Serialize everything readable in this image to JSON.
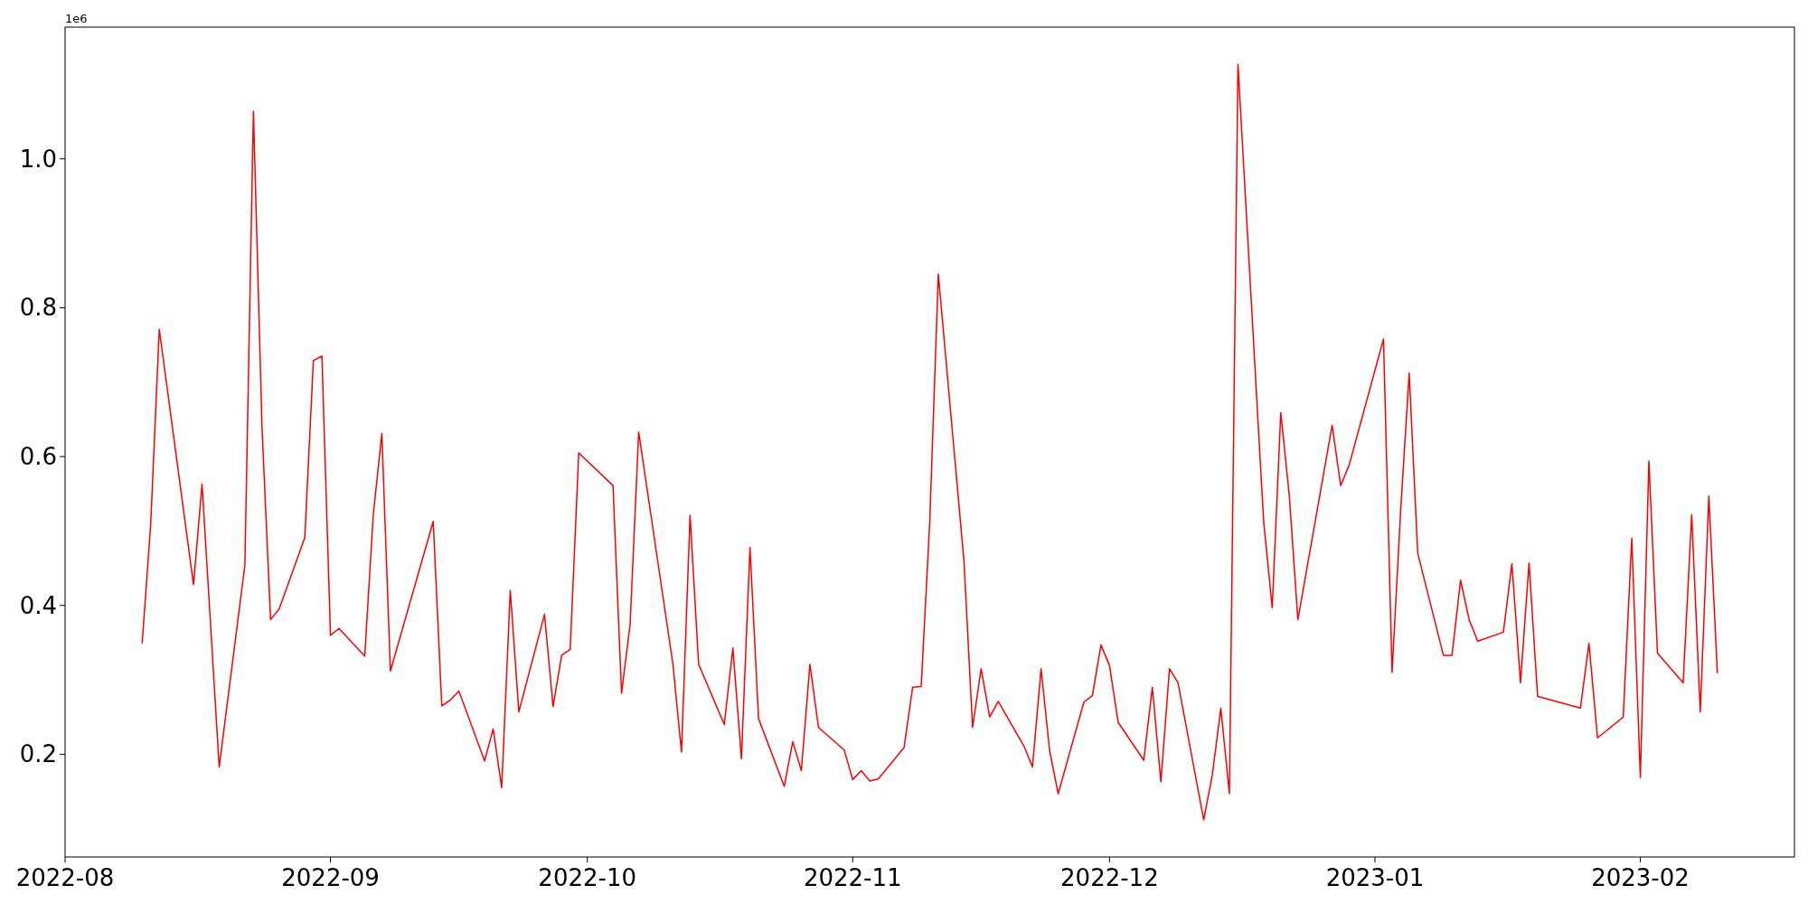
{
  "chart_data": {
    "type": "line",
    "annotations": [
      "1e6"
    ],
    "x": [
      "2022-08-10",
      "2022-08-11",
      "2022-08-12",
      "2022-08-16",
      "2022-08-17",
      "2022-08-19",
      "2022-08-22",
      "2022-08-23",
      "2022-08-24",
      "2022-08-25",
      "2022-08-26",
      "2022-08-29",
      "2022-08-30",
      "2022-08-31",
      "2022-09-01",
      "2022-09-02",
      "2022-09-05",
      "2022-09-06",
      "2022-09-07",
      "2022-09-08",
      "2022-09-13",
      "2022-09-14",
      "2022-09-15",
      "2022-09-16",
      "2022-09-19",
      "2022-09-20",
      "2022-09-21",
      "2022-09-22",
      "2022-09-23",
      "2022-09-26",
      "2022-09-27",
      "2022-09-28",
      "2022-09-29",
      "2022-09-30",
      "2022-10-04",
      "2022-10-05",
      "2022-10-06",
      "2022-10-07",
      "2022-10-11",
      "2022-10-12",
      "2022-10-13",
      "2022-10-14",
      "2022-10-17",
      "2022-10-18",
      "2022-10-19",
      "2022-10-20",
      "2022-10-21",
      "2022-10-24",
      "2022-10-25",
      "2022-10-26",
      "2022-10-27",
      "2022-10-28",
      "2022-10-31",
      "2022-11-01",
      "2022-11-02",
      "2022-11-03",
      "2022-11-04",
      "2022-11-07",
      "2022-11-08",
      "2022-11-09",
      "2022-11-10",
      "2022-11-11",
      "2022-11-14",
      "2022-11-15",
      "2022-11-16",
      "2022-11-17",
      "2022-11-18",
      "2022-11-21",
      "2022-11-22",
      "2022-11-23",
      "2022-11-24",
      "2022-11-25",
      "2022-11-28",
      "2022-11-29",
      "2022-11-30",
      "2022-12-01",
      "2022-12-02",
      "2022-12-05",
      "2022-12-06",
      "2022-12-07",
      "2022-12-08",
      "2022-12-09",
      "2022-12-12",
      "2022-12-13",
      "2022-12-14",
      "2022-12-15",
      "2022-12-16",
      "2022-12-19",
      "2022-12-20",
      "2022-12-21",
      "2022-12-22",
      "2022-12-23",
      "2022-12-27",
      "2022-12-28",
      "2022-12-29",
      "2023-01-02",
      "2023-01-03",
      "2023-01-04",
      "2023-01-05",
      "2023-01-06",
      "2023-01-09",
      "2023-01-10",
      "2023-01-11",
      "2023-01-12",
      "2023-01-13",
      "2023-01-16",
      "2023-01-17",
      "2023-01-18",
      "2023-01-19",
      "2023-01-20",
      "2023-01-25",
      "2023-01-26",
      "2023-01-27",
      "2023-01-30",
      "2023-01-31",
      "2023-02-01",
      "2023-02-02",
      "2023-02-03",
      "2023-02-06",
      "2023-02-07",
      "2023-02-08",
      "2023-02-09",
      "2023-02-10"
    ],
    "series": [
      {
        "color": "#ff0000",
        "values": [
          0.349,
          0.509,
          0.771,
          0.428,
          0.563,
          0.183,
          0.454,
          1.064,
          0.64,
          0.381,
          0.395,
          0.491,
          0.729,
          0.735,
          0.36,
          0.369,
          0.332,
          0.522,
          0.631,
          0.312,
          0.513,
          0.265,
          0.273,
          0.285,
          0.191,
          0.234,
          0.155,
          0.42,
          0.257,
          0.388,
          0.264,
          0.333,
          0.341,
          0.605,
          0.561,
          0.282,
          0.375,
          0.633,
          0.321,
          0.203,
          0.521,
          0.321,
          0.24,
          0.343,
          0.194,
          0.478,
          0.248,
          0.157,
          0.217,
          0.178,
          0.321,
          0.236,
          0.206,
          0.166,
          0.178,
          0.164,
          0.167,
          0.209,
          0.29,
          0.291,
          0.513,
          0.845,
          0.459,
          0.236,
          0.315,
          0.25,
          0.271,
          0.211,
          0.183,
          0.315,
          0.205,
          0.147,
          0.27,
          0.279,
          0.347,
          0.319,
          0.243,
          0.192,
          0.29,
          0.163,
          0.315,
          0.296,
          0.112,
          0.172,
          0.262,
          0.147,
          1.127,
          0.513,
          0.397,
          0.659,
          0.547,
          0.381,
          0.642,
          0.561,
          0.589,
          0.758,
          0.31,
          0.527,
          0.712,
          0.47,
          0.333,
          0.333,
          0.434,
          0.381,
          0.352,
          0.364,
          0.456,
          0.296,
          0.457,
          0.278,
          0.262,
          0.349,
          0.222,
          0.25,
          0.49,
          0.169,
          0.594,
          0.336,
          0.296,
          0.522,
          0.257,
          0.547,
          0.309
        ]
      }
    ],
    "xlim": [
      "2022-08-01",
      "2023-02-19"
    ],
    "xticks": [
      {
        "value": "2022-08-01",
        "label": "2022-08"
      },
      {
        "value": "2022-09-01",
        "label": "2022-09"
      },
      {
        "value": "2022-10-01",
        "label": "2022-10"
      },
      {
        "value": "2022-11-01",
        "label": "2022-11"
      },
      {
        "value": "2022-12-01",
        "label": "2022-12"
      },
      {
        "value": "2023-01-01",
        "label": "2023-01"
      },
      {
        "value": "2023-02-01",
        "label": "2023-02"
      }
    ],
    "ylim": [
      0.062,
      1.177
    ],
    "yticks": [
      0.2,
      0.4,
      0.6,
      0.8,
      {
        "value": 1,
        "label": "1.0"
      }
    ],
    "grid": false,
    "marker": "none",
    "line_style": "solid"
  }
}
